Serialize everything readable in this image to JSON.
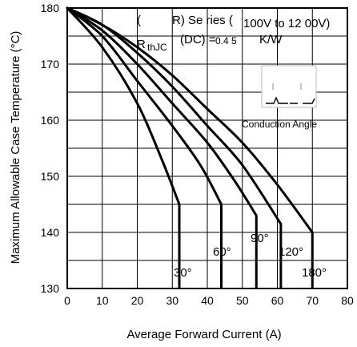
{
  "chart_data": {
    "type": "line",
    "xlabel": "Average Forward Current (A)",
    "ylabel": "Maximum Allowable Case Temperature (°C)",
    "xlim": [
      0,
      80
    ],
    "ylim": [
      130,
      180
    ],
    "xticks": [
      "0",
      "10",
      "20",
      "30",
      "40",
      "50",
      "60",
      "70",
      "80"
    ],
    "yticks": [
      "130",
      "140",
      "150",
      "160",
      "170",
      "180"
    ],
    "grid": true,
    "series": [
      {
        "name": "30°",
        "x": [
          0,
          10,
          20,
          27,
          32
        ],
        "y": [
          180,
          173,
          163,
          153,
          145
        ]
      },
      {
        "name": "60°",
        "x": [
          0,
          10,
          20,
          30,
          38,
          44
        ],
        "y": [
          180,
          175,
          167,
          159,
          152,
          145
        ]
      },
      {
        "name": "90°",
        "x": [
          0,
          10,
          20,
          30,
          40,
          48,
          54
        ],
        "y": [
          180,
          176,
          170,
          163,
          156,
          149,
          143
        ]
      },
      {
        "name": "120°",
        "x": [
          0,
          10,
          20,
          30,
          40,
          50,
          61
        ],
        "y": [
          180,
          177,
          172,
          166,
          159,
          152,
          141.5
        ]
      },
      {
        "name": "180°",
        "x": [
          0,
          10,
          20,
          30,
          40,
          50,
          60,
          70
        ],
        "y": [
          180,
          177,
          173,
          168,
          162,
          156,
          148.5,
          140
        ]
      }
    ],
    "drops": [
      {
        "label": "30°",
        "x": 32,
        "y_top": 145
      },
      {
        "label": "60°",
        "x": 44,
        "y_top": 145
      },
      {
        "label": "90°",
        "x": 54,
        "y_top": 143
      },
      {
        "label": "120°",
        "x": 61,
        "y_top": 141.5
      },
      {
        "label": "180°",
        "x": 70,
        "y_top": 140
      }
    ],
    "annotations": {
      "paren_open": "(",
      "r_letter": "R",
      "thjc_sub": "thJC",
      "series_text": "R) Se ries (",
      "voltage_text": "100V to 12 00V)",
      "dc_text": "(DC) =",
      "rth_value": "0.4 5",
      "rth_unit": "K/W",
      "conduction_label": "Conduction Angle"
    }
  }
}
